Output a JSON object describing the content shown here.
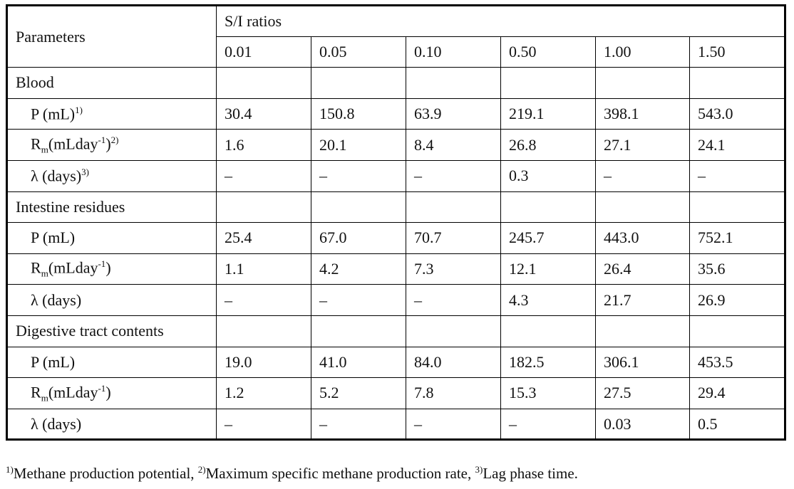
{
  "header": {
    "parameters": "Parameters",
    "group": "S/I ratios",
    "ratios": [
      "0.01",
      "0.05",
      "0.10",
      "0.50",
      "1.00",
      "1.50"
    ]
  },
  "groups": [
    {
      "name": "Blood",
      "rows": [
        {
          "label": {
            "base": "P (mL)",
            "note": "1)"
          },
          "values": [
            "30.4",
            "150.8",
            "63.9",
            "219.1",
            "398.1",
            "543.0"
          ]
        },
        {
          "label": {
            "base": "R",
            "sub": "m",
            "rest": "(mLday",
            "sup": "-1",
            "end": ")",
            "note": "2)"
          },
          "values": [
            "1.6",
            "20.1",
            "8.4",
            "26.8",
            "27.1",
            "24.1"
          ]
        },
        {
          "label": {
            "base": "λ (days)",
            "note": "3)"
          },
          "values": [
            "–",
            "–",
            "–",
            "0.3",
            "–",
            "–"
          ]
        }
      ]
    },
    {
      "name": "Intestine residues",
      "rows": [
        {
          "label": {
            "base": "P (mL)"
          },
          "values": [
            "25.4",
            "67.0",
            "70.7",
            "245.7",
            "443.0",
            "752.1"
          ]
        },
        {
          "label": {
            "base": "R",
            "sub": "m",
            "rest": "(mLday",
            "sup": "-1",
            "end": ")"
          },
          "values": [
            "1.1",
            "4.2",
            "7.3",
            "12.1",
            "26.4",
            "35.6"
          ]
        },
        {
          "label": {
            "base": "λ (days)"
          },
          "values": [
            "–",
            "–",
            "–",
            "4.3",
            "21.7",
            "26.9"
          ]
        }
      ]
    },
    {
      "name": "Digestive tract contents",
      "rows": [
        {
          "label": {
            "base": "P (mL)"
          },
          "values": [
            "19.0",
            "41.0",
            "84.0",
            "182.5",
            "306.1",
            "453.5"
          ]
        },
        {
          "label": {
            "base": "R",
            "sub": "m",
            "rest": "(mLday",
            "sup": "-1",
            "end": ")"
          },
          "values": [
            "1.2",
            "5.2",
            "7.8",
            "15.3",
            "27.5",
            "29.4"
          ]
        },
        {
          "label": {
            "base": "λ (days)"
          },
          "values": [
            "–",
            "–",
            "–",
            "–",
            "0.03",
            "0.5"
          ]
        }
      ]
    }
  ],
  "footnote": [
    {
      "mark": "1)",
      "text": "Methane production potential, "
    },
    {
      "mark": "2)",
      "text": "Maximum specific methane production rate, "
    },
    {
      "mark": "3)",
      "text": "Lag phase time."
    }
  ]
}
